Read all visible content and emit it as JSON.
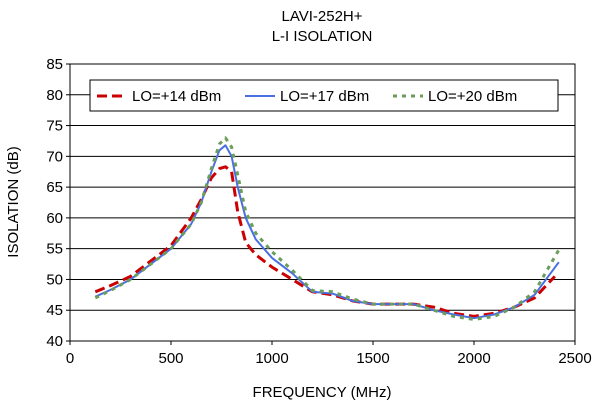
{
  "chart_data": {
    "type": "line",
    "title": "LAVI-252H+",
    "subtitle": "L-I ISOLATION",
    "xlabel": "FREQUENCY (MHz)",
    "ylabel": "ISOLATION (dB)",
    "xlim": [
      0,
      2500
    ],
    "ylim": [
      40,
      85
    ],
    "xticks": [
      0,
      500,
      1000,
      1500,
      2000,
      2500
    ],
    "yticks": [
      40,
      45,
      50,
      55,
      60,
      65,
      70,
      75,
      80,
      85
    ],
    "grid": "horizontal",
    "legend_position": "top",
    "series": [
      {
        "name": "LO=+14 dBm",
        "color": "#cc0000",
        "dash": "long-dash",
        "x": [
          125,
          200,
          300,
          400,
          500,
          600,
          650,
          700,
          740,
          770,
          800,
          830,
          870,
          920,
          1000,
          1100,
          1200,
          1300,
          1400,
          1500,
          1600,
          1700,
          1800,
          1900,
          2000,
          2100,
          2200,
          2300,
          2400
        ],
        "y": [
          48.0,
          49.0,
          50.5,
          53.0,
          55.5,
          60.0,
          63.0,
          66.5,
          68.0,
          68.3,
          67.5,
          61.0,
          56.0,
          54.0,
          52.0,
          50.0,
          48.0,
          47.5,
          46.5,
          46.0,
          46.0,
          46.0,
          45.5,
          44.5,
          44.0,
          44.5,
          45.5,
          47.0,
          50.5
        ]
      },
      {
        "name": "LO=+17 dBm",
        "color": "#4a6fe3",
        "dash": "solid",
        "x": [
          125,
          200,
          300,
          400,
          500,
          600,
          650,
          700,
          740,
          770,
          800,
          830,
          870,
          920,
          1000,
          1100,
          1200,
          1300,
          1400,
          1500,
          1600,
          1700,
          1800,
          1900,
          2000,
          2100,
          2200,
          2300,
          2420
        ],
        "y": [
          47.2,
          48.3,
          50.0,
          52.5,
          55.0,
          59.0,
          62.5,
          67.5,
          71.0,
          71.8,
          70.0,
          65.0,
          60.0,
          56.5,
          53.5,
          51.0,
          48.0,
          47.7,
          46.5,
          46.0,
          46.0,
          46.0,
          45.0,
          44.3,
          43.7,
          44.3,
          45.5,
          47.5,
          52.8
        ]
      },
      {
        "name": "LO=+20 dBm",
        "color": "#6a9e5a",
        "dash": "dotted",
        "x": [
          125,
          200,
          300,
          400,
          500,
          600,
          650,
          700,
          740,
          770,
          800,
          830,
          870,
          920,
          1000,
          1100,
          1200,
          1300,
          1400,
          1500,
          1600,
          1700,
          1800,
          1900,
          2000,
          2100,
          2200,
          2300,
          2420
        ],
        "y": [
          47.0,
          48.2,
          50.0,
          52.5,
          55.0,
          59.0,
          62.5,
          68.0,
          72.0,
          73.0,
          71.5,
          67.0,
          61.0,
          57.5,
          54.5,
          51.5,
          48.2,
          48.0,
          46.8,
          46.0,
          46.0,
          46.0,
          45.0,
          44.0,
          43.5,
          44.0,
          45.5,
          48.0,
          54.8
        ]
      }
    ]
  }
}
